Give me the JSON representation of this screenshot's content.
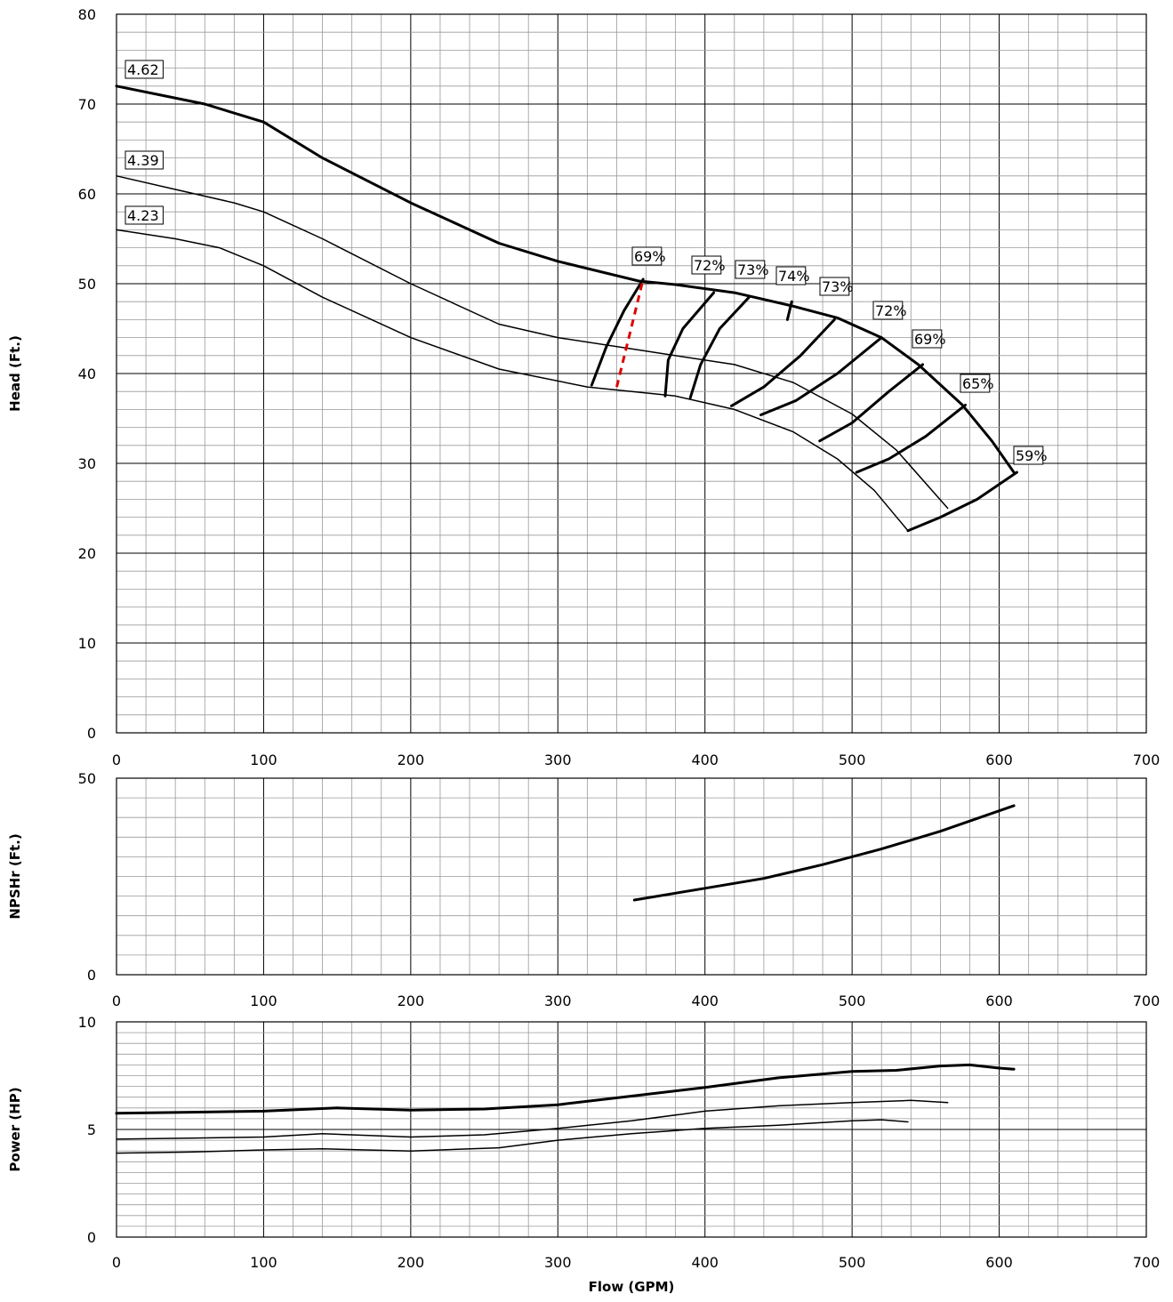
{
  "chart_data": [
    {
      "type": "line",
      "panel": "head",
      "ylabel": "Head (Ft.)",
      "xlim": [
        0,
        700
      ],
      "ylim": [
        0,
        80
      ],
      "x_ticks": [
        "0",
        "100",
        "200",
        "300",
        "400",
        "500",
        "600",
        "700"
      ],
      "y_ticks": [
        "0",
        "10",
        "20",
        "30",
        "40",
        "50",
        "60",
        "70",
        "80"
      ],
      "grid": true,
      "series": [
        {
          "name": "4.62",
          "style": "bold",
          "x": [
            0,
            30,
            60,
            90,
            100,
            140,
            200,
            260,
            300,
            355,
            380,
            420,
            460,
            490,
            520,
            545,
            575,
            595,
            610
          ],
          "y": [
            72,
            71,
            70,
            68.5,
            68,
            64,
            59,
            54.5,
            52.5,
            50.3,
            49.9,
            49,
            47.5,
            46.2,
            44,
            41,
            36.5,
            32.5,
            29
          ]
        },
        {
          "name": "4.39",
          "style": "normal",
          "x": [
            0,
            40,
            80,
            100,
            140,
            200,
            260,
            300,
            360,
            420,
            460,
            500,
            530,
            565
          ],
          "y": [
            62,
            60.5,
            59,
            58,
            55,
            50,
            45.5,
            44,
            42.5,
            41,
            39,
            35.5,
            31.5,
            25
          ]
        },
        {
          "name": "4.23",
          "style": "normal",
          "x": [
            0,
            40,
            70,
            100,
            140,
            200,
            260,
            320,
            380,
            420,
            460,
            490,
            515,
            538
          ],
          "y": [
            56,
            55,
            54,
            52,
            48.5,
            44,
            40.5,
            38.5,
            37.5,
            36,
            33.5,
            30.5,
            27,
            22.5
          ]
        }
      ],
      "efficiency_contours": [
        {
          "label": "69%",
          "x": [
            323,
            333,
            345,
            358
          ],
          "y": [
            38.7,
            43,
            47,
            50.5
          ]
        },
        {
          "label": "72%",
          "x": [
            373,
            375,
            385,
            406
          ],
          "y": [
            37.5,
            41.5,
            45,
            49
          ]
        },
        {
          "label": "73%",
          "x": [
            390,
            397,
            410,
            430
          ],
          "y": [
            37.3,
            41,
            45,
            48.5
          ]
        },
        {
          "label": "74%",
          "x": [
            456,
            459
          ],
          "y": [
            46,
            48
          ]
        },
        {
          "label": "73%",
          "x": [
            418,
            440,
            465,
            488
          ],
          "y": [
            36.4,
            38.5,
            42,
            46
          ]
        },
        {
          "label": "72%",
          "x": [
            438,
            462,
            490,
            520
          ],
          "y": [
            35.4,
            37,
            40,
            44
          ]
        },
        {
          "label": "69%",
          "x": [
            478,
            500,
            525,
            548
          ],
          "y": [
            32.5,
            34.5,
            38,
            41
          ]
        },
        {
          "label": "65%",
          "x": [
            503,
            525,
            550,
            577
          ],
          "y": [
            29,
            30.5,
            33,
            36.5
          ]
        },
        {
          "label": "59%",
          "x": [
            538,
            560,
            585,
            612
          ],
          "y": [
            22.5,
            24,
            26,
            29
          ]
        }
      ],
      "npsh_marker": {
        "style": "red-dashed",
        "x": [
          340,
          358
        ],
        "y": [
          38.5,
          50.5
        ]
      },
      "label_boxes": [
        "4.62",
        "4.39",
        "4.23",
        "69%",
        "72%",
        "73%",
        "74%",
        "73%",
        "72%",
        "69%",
        "65%",
        "59%"
      ]
    },
    {
      "type": "line",
      "panel": "npshr",
      "ylabel": "NPSHr (Ft.)",
      "xlim": [
        0,
        700
      ],
      "ylim": [
        0,
        50
      ],
      "x_ticks": [
        "0",
        "100",
        "200",
        "300",
        "400",
        "500",
        "600",
        "700"
      ],
      "y_ticks": [
        "0",
        "50"
      ],
      "grid": true,
      "series": [
        {
          "name": "",
          "style": "bold",
          "x": [
            352,
            400,
            440,
            480,
            520,
            560,
            610
          ],
          "y": [
            19,
            22,
            24.5,
            28,
            32,
            36.5,
            43
          ]
        }
      ]
    },
    {
      "type": "line",
      "panel": "power",
      "ylabel": "Power (HP)",
      "xlabel": "Flow (GPM)",
      "xlim": [
        0,
        700
      ],
      "ylim": [
        0,
        10
      ],
      "x_ticks": [
        "0",
        "100",
        "200",
        "300",
        "400",
        "500",
        "600",
        "700"
      ],
      "y_ticks": [
        "0",
        "5",
        "10"
      ],
      "grid": true,
      "series": [
        {
          "name": "4.62",
          "style": "bold",
          "x": [
            0,
            50,
            100,
            150,
            200,
            250,
            300,
            350,
            400,
            450,
            500,
            530,
            560,
            580,
            600,
            610
          ],
          "y": [
            5.75,
            5.8,
            5.85,
            6.0,
            5.9,
            5.95,
            6.15,
            6.55,
            6.95,
            7.4,
            7.7,
            7.75,
            7.95,
            8.0,
            7.85,
            7.8
          ]
        },
        {
          "name": "4.39",
          "style": "normal",
          "x": [
            0,
            50,
            100,
            140,
            200,
            250,
            300,
            350,
            400,
            450,
            500,
            540,
            565
          ],
          "y": [
            4.55,
            4.6,
            4.65,
            4.8,
            4.65,
            4.75,
            5.05,
            5.4,
            5.85,
            6.1,
            6.25,
            6.35,
            6.25
          ]
        },
        {
          "name": "4.23",
          "style": "normal",
          "x": [
            0,
            50,
            100,
            140,
            200,
            260,
            300,
            350,
            400,
            450,
            500,
            520,
            538
          ],
          "y": [
            3.9,
            3.95,
            4.05,
            4.1,
            4.0,
            4.15,
            4.5,
            4.8,
            5.05,
            5.2,
            5.4,
            5.45,
            5.35
          ]
        }
      ]
    }
  ]
}
